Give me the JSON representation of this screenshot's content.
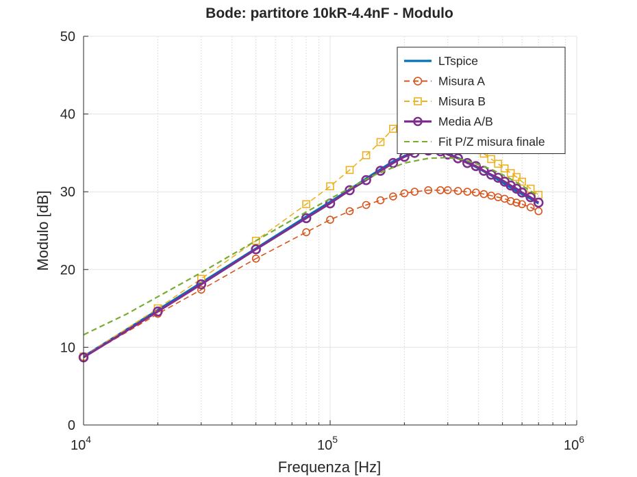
{
  "chart_data": {
    "type": "line",
    "title": "Bode: partitore 10kR-4.4nF - Modulo",
    "xlabel": "Frequenza [Hz]",
    "ylabel": "Modulo [dB]",
    "xscale": "log",
    "xlim": [
      10000,
      1000000
    ],
    "ylim": [
      0,
      50
    ],
    "xticks": [
      {
        "value": 10000,
        "base": "10",
        "exp": "4"
      },
      {
        "value": 100000,
        "base": "10",
        "exp": "5"
      },
      {
        "value": 1000000,
        "base": "10",
        "exp": "6"
      }
    ],
    "yticks": [
      0,
      10,
      20,
      30,
      40,
      50
    ],
    "grid": true,
    "legend_position": "top-right",
    "series": [
      {
        "name": "LTspice",
        "color": "#0072BD",
        "style": "solid",
        "marker": "none",
        "x": [
          10000,
          20000,
          30000,
          50000,
          80000,
          100000,
          120000,
          140000,
          160000,
          180000,
          200000,
          220000,
          250000,
          280000,
          300000,
          350000,
          400000,
          450000,
          500000,
          550000,
          600000,
          650000,
          700000
        ],
        "y": [
          8.8,
          14.8,
          18.3,
          22.7,
          26.8,
          28.7,
          30.3,
          31.7,
          32.9,
          33.9,
          34.6,
          35.1,
          35.3,
          35.2,
          34.9,
          34.0,
          33.0,
          32.1,
          31.2,
          30.4,
          29.7,
          29.1,
          28.5
        ]
      },
      {
        "name": "Misura A",
        "color": "#D95319",
        "style": "dashed",
        "marker": "circle",
        "x": [
          10000,
          20000,
          30000,
          50000,
          80000,
          100000,
          120000,
          140000,
          160000,
          180000,
          200000,
          220000,
          250000,
          280000,
          300000,
          330000,
          360000,
          390000,
          420000,
          450000,
          480000,
          510000,
          540000,
          570000,
          600000,
          650000,
          700000
        ],
        "y": [
          8.7,
          14.3,
          17.4,
          21.4,
          24.8,
          26.4,
          27.5,
          28.3,
          28.9,
          29.4,
          29.8,
          30.0,
          30.2,
          30.2,
          30.2,
          30.1,
          30.0,
          29.9,
          29.7,
          29.5,
          29.3,
          29.1,
          28.8,
          28.6,
          28.4,
          28.0,
          27.5
        ]
      },
      {
        "name": "Misura B",
        "color": "#EDB120",
        "style": "dashed",
        "marker": "square",
        "x": [
          10000,
          20000,
          30000,
          50000,
          80000,
          100000,
          120000,
          140000,
          160000,
          180000,
          200000,
          220000,
          250000,
          280000,
          300000,
          330000,
          360000,
          390000,
          420000,
          450000,
          480000,
          510000,
          540000,
          570000,
          600000,
          650000,
          700000
        ],
        "y": [
          8.8,
          15.0,
          18.8,
          23.7,
          28.4,
          30.7,
          32.8,
          34.7,
          36.4,
          38.1,
          39.2,
          40.0,
          40.5,
          40.3,
          39.8,
          38.6,
          37.3,
          36.0,
          34.9,
          34.2,
          33.6,
          33.0,
          32.4,
          31.9,
          31.3,
          30.4,
          29.6
        ]
      },
      {
        "name": "Media A/B",
        "color": "#7E2F8E",
        "style": "solid",
        "marker": "circle",
        "x": [
          10000,
          20000,
          30000,
          50000,
          80000,
          100000,
          120000,
          140000,
          160000,
          180000,
          200000,
          220000,
          250000,
          280000,
          300000,
          330000,
          360000,
          390000,
          420000,
          450000,
          480000,
          510000,
          540000,
          570000,
          600000,
          650000,
          700000
        ],
        "y": [
          8.7,
          14.6,
          18.1,
          22.6,
          26.6,
          28.5,
          30.2,
          31.5,
          32.7,
          33.7,
          34.5,
          35.0,
          35.3,
          35.2,
          34.8,
          34.3,
          33.7,
          33.3,
          32.7,
          32.2,
          31.8,
          31.3,
          30.8,
          30.4,
          29.9,
          29.3,
          28.6
        ]
      },
      {
        "name": "Fit P/Z misura finale",
        "color": "#77AC30",
        "style": "dashed",
        "marker": "none",
        "x": [
          10000,
          15000,
          20000,
          30000,
          50000,
          80000,
          100000,
          150000,
          200000,
          250000,
          300000,
          350000,
          400000,
          450000,
          500000,
          550000,
          600000,
          650000,
          700000
        ],
        "y": [
          11.6,
          14.3,
          16.5,
          19.6,
          23.7,
          27.4,
          29.1,
          32.1,
          33.7,
          34.3,
          34.4,
          34.1,
          33.5,
          32.9,
          32.2,
          31.5,
          30.8,
          30.1,
          29.4
        ]
      }
    ]
  }
}
